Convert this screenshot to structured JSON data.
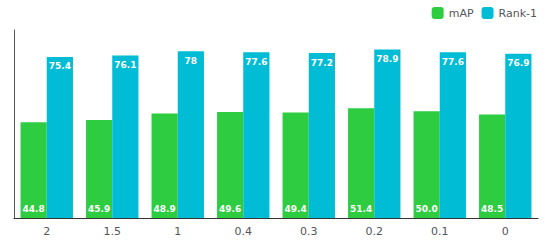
{
  "chart_data": {
    "type": "bar",
    "categories": [
      "2",
      "1.5",
      "1",
      "0.4",
      "0.3",
      "0.2",
      "0.1",
      "0"
    ],
    "series": [
      {
        "name": "mAP",
        "color": "#2ecc40",
        "values": [
          44.8,
          45.9,
          48.9,
          49.6,
          49.4,
          51.4,
          50.0,
          48.5
        ],
        "value_labels": [
          "44.8",
          "45.9",
          "48.9",
          "49.6",
          "49.4",
          "51.4",
          "50.0",
          "48.5"
        ]
      },
      {
        "name": "Rank-1",
        "color": "#00bcd4",
        "values": [
          75.4,
          76.1,
          78.0,
          77.6,
          77.2,
          78.9,
          77.6,
          76.9
        ]
      }
    ],
    "ylim": [
      0,
      88
    ],
    "grid": false,
    "legend": "upper right",
    "data_labels": true,
    "tick_labels": "x"
  }
}
